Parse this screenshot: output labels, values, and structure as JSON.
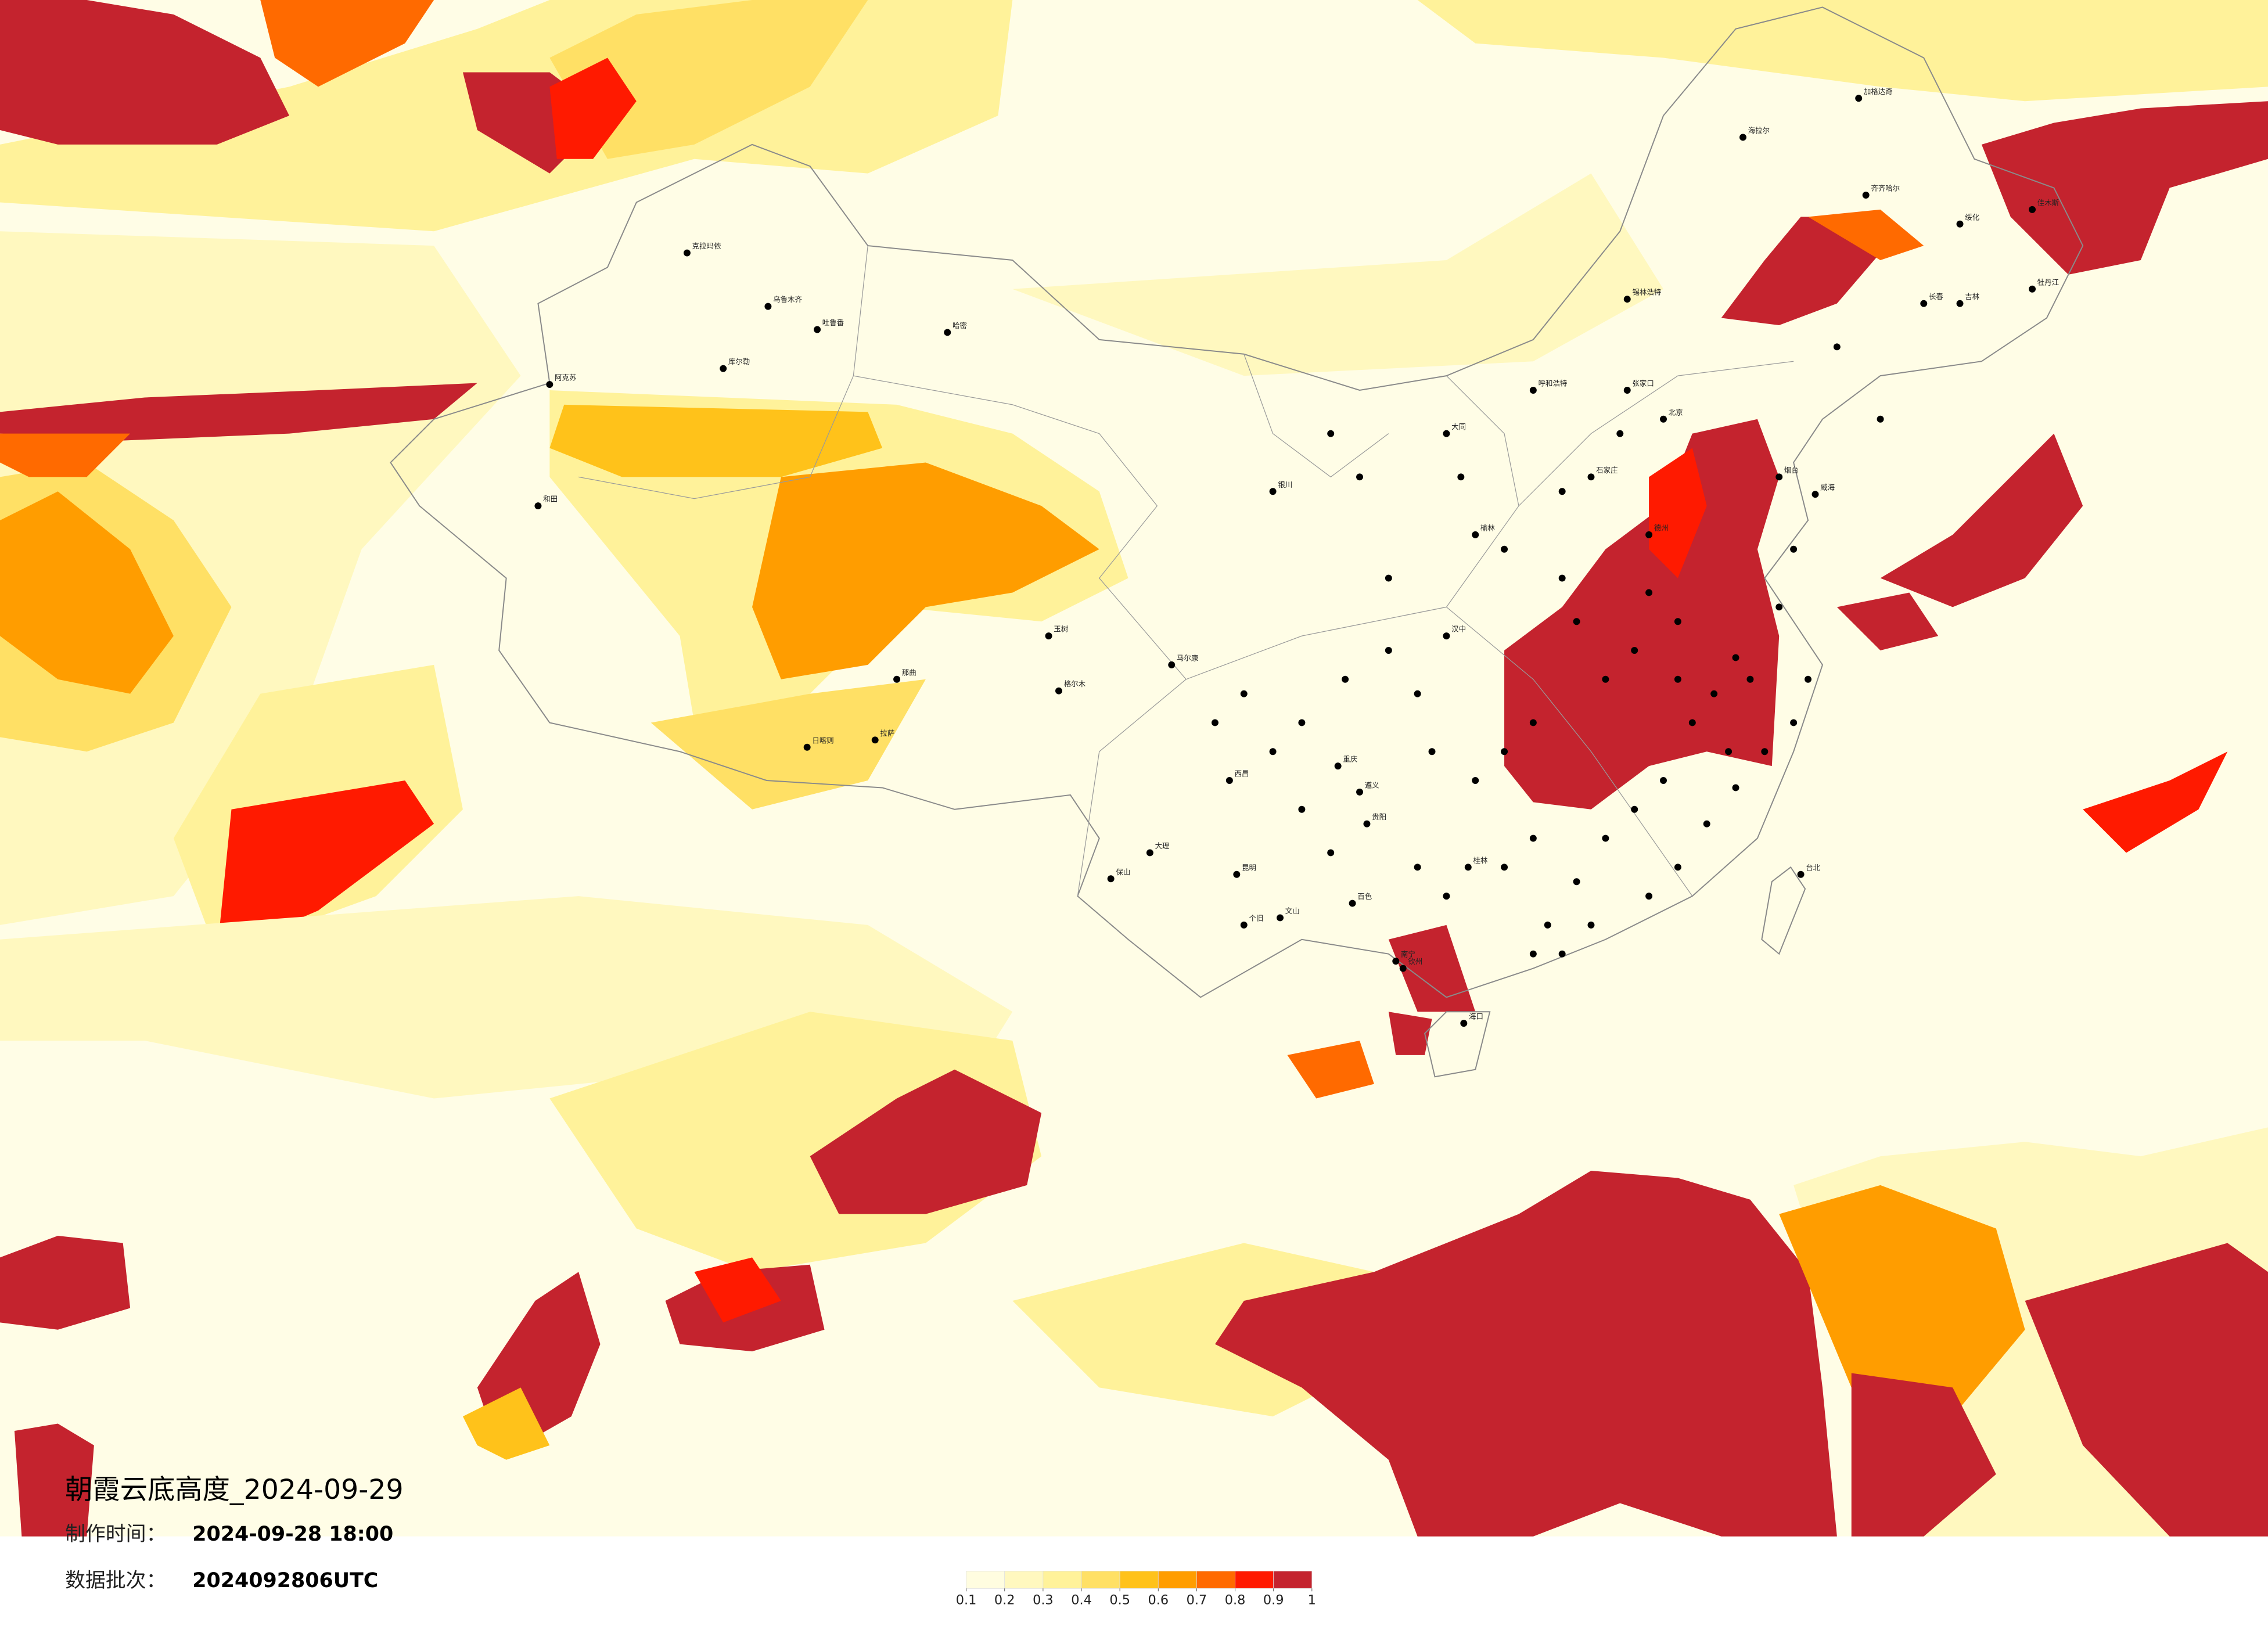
{
  "title": "朝霞云底高度_2024-09-29",
  "production_time": {
    "label": "制作时间：",
    "value": "2024-09-28 18:00"
  },
  "data_batch": {
    "label": "数据批次：",
    "value": "2024092806UTC"
  },
  "legend": {
    "ticks": [
      0.1,
      0.2,
      0.3,
      0.4,
      0.5,
      0.6,
      0.7,
      0.8,
      0.9,
      1
    ],
    "colors": [
      "#fffde0",
      "#fff8bf",
      "#fff29a",
      "#ffe065",
      "#ffc21a",
      "#ff9d00",
      "#ff6a00",
      "#ff1a00",
      "#c4232e"
    ]
  },
  "cities": [
    "克拉玛依",
    "乌鲁木齐",
    "吐鲁番",
    "哈密",
    "库尔勒",
    "阿克苏",
    "和田",
    "日喀则",
    "拉萨",
    "那曲",
    "海拉尔",
    "加格达奇",
    "齐齐哈尔",
    "绥化",
    "佳木斯",
    "牡丹江",
    "锡林浩特",
    "长春",
    "吉林",
    "呼和浩特",
    "张家口",
    "北京",
    "石家庄",
    "德州",
    "烟台",
    "威海",
    "大同",
    "榆林",
    "银川",
    "汉中",
    "重庆",
    "遵义",
    "贵阳",
    "昆明",
    "大理",
    "保山",
    "南宁",
    "桂林",
    "钦州",
    "海口",
    "百色",
    "个旧",
    "文山",
    "西昌",
    "马尔康",
    "玉树",
    "格尔木",
    "台北"
  ]
}
